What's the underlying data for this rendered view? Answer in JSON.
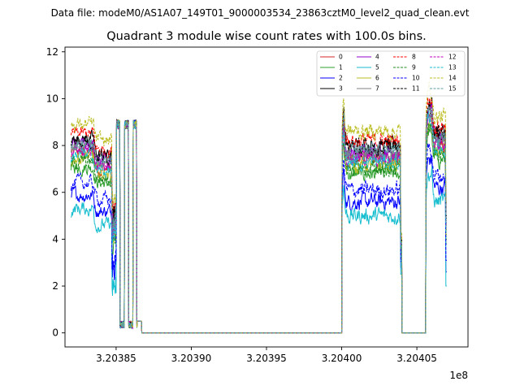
{
  "figure": {
    "suptitle": "Data file: modeM0/AS1A07_149T01_9000003534_23863cztM0_level2_quad_clean.evt",
    "title": "Quadrant 3 module wise count rates with 100.0s bins.",
    "x_offset_label": "1e8"
  },
  "chart_data": {
    "type": "line",
    "title": "Quadrant 3 module wise count rates with 100.0s bins.",
    "xlabel": "",
    "ylabel": "",
    "x_offset_multiplier": "1e8",
    "xlim": [
      3.203816,
      3.204084
    ],
    "ylim": [
      -0.6,
      12.2
    ],
    "xticks": [
      3.20385,
      3.2039,
      3.20395,
      3.204,
      3.20405
    ],
    "xtick_labels": [
      "3.20385",
      "3.20390",
      "3.20395",
      "3.20400",
      "3.20405"
    ],
    "yticks": [
      0,
      2,
      4,
      6,
      8,
      10,
      12
    ],
    "ytick_labels": [
      "0",
      "2",
      "4",
      "6",
      "8",
      "10",
      "12"
    ],
    "grid": false,
    "legend": {
      "placement": "top-right",
      "columns": 4
    },
    "segments": [
      {
        "x_start": 3.20382,
        "x_end": 3.20385,
        "level": "plateau"
      },
      {
        "x_start": 3.20385,
        "x_end": 3.203867,
        "level": "spikes"
      },
      {
        "x_start": 3.203867,
        "x_end": 3.204,
        "level": 0
      },
      {
        "x_start": 3.204,
        "x_end": 3.204039,
        "level": "plateau"
      },
      {
        "x_start": 3.204039,
        "x_end": 3.204056,
        "level": 0
      },
      {
        "x_start": 3.204056,
        "x_end": 3.20407,
        "level": "plateau"
      }
    ],
    "series": [
      {
        "name": "0",
        "color": "#d62728",
        "dash": "solid",
        "mean": 7.4
      },
      {
        "name": "1",
        "color": "#2ca02c",
        "dash": "solid",
        "mean": 6.8
      },
      {
        "name": "2",
        "color": "#0000ff",
        "dash": "solid",
        "mean": 5.6
      },
      {
        "name": "3",
        "color": "#000000",
        "dash": "solid",
        "mean": 8.0
      },
      {
        "name": "4",
        "color": "#9400d3",
        "dash": "solid",
        "mean": 7.7
      },
      {
        "name": "5",
        "color": "#17becf",
        "dash": "solid",
        "mean": 5.0
      },
      {
        "name": "6",
        "color": "#bcbd22",
        "dash": "solid",
        "mean": 7.2
      },
      {
        "name": "7",
        "color": "#7f7f7f",
        "dash": "solid",
        "mean": 7.6
      },
      {
        "name": "8",
        "color": "#ff0000",
        "dash": "dashed",
        "mean": 8.2
      },
      {
        "name": "9",
        "color": "#228b22",
        "dash": "dashed",
        "mean": 7.0
      },
      {
        "name": "10",
        "color": "#0000ff",
        "dash": "dashed",
        "mean": 6.1
      },
      {
        "name": "11",
        "color": "#000000",
        "dash": "dashed",
        "mean": 7.9
      },
      {
        "name": "12",
        "color": "#c000c0",
        "dash": "dashed",
        "mean": 7.5
      },
      {
        "name": "13",
        "color": "#17becf",
        "dash": "dashed",
        "mean": 7.3
      },
      {
        "name": "14",
        "color": "#bcbd22",
        "dash": "dashed",
        "mean": 8.6
      },
      {
        "name": "15",
        "color": "#5f9ea0",
        "dash": "dashed",
        "mean": 7.8
      }
    ]
  }
}
